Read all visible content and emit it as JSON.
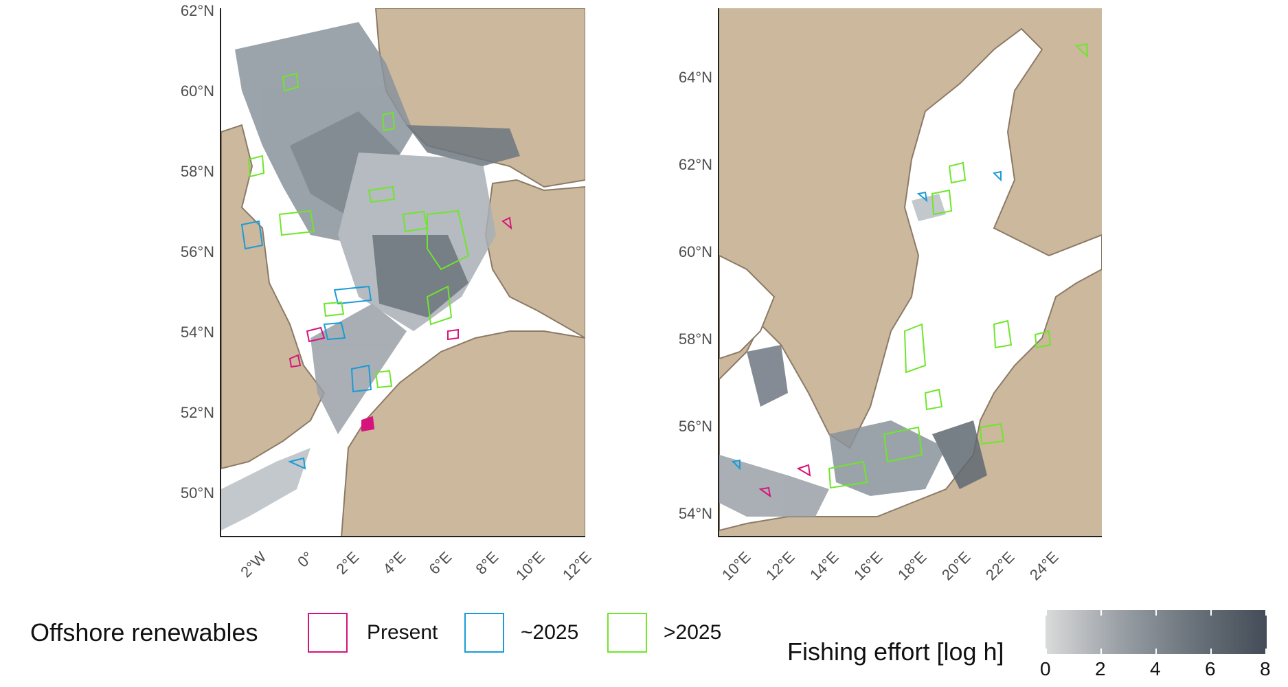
{
  "left_map": {
    "lat_labels": [
      "62°N",
      "60°N",
      "58°N",
      "56°N",
      "54°N",
      "52°N",
      "50°N"
    ],
    "lon_labels": [
      "2°W",
      "0°",
      "2°E",
      "4°E",
      "6°E",
      "8°E",
      "10°E",
      "12°E"
    ]
  },
  "right_map": {
    "lat_labels": [
      "64°N",
      "62°N",
      "60°N",
      "58°N",
      "56°N",
      "54°N"
    ],
    "lon_labels": [
      "10°E",
      "12°E",
      "14°E",
      "16°E",
      "18°E",
      "20°E",
      "22°E",
      "24°E"
    ]
  },
  "legend": {
    "title": "Offshore renewables",
    "items": [
      {
        "label": "Present",
        "color": "#d6147b"
      },
      {
        "label": "~2025",
        "color": "#1a9bd7"
      },
      {
        "label": ">2025",
        "color": "#6ee62a"
      }
    ]
  },
  "colorbar": {
    "title": "Fishing effort [log h]",
    "ticks": [
      "0",
      "2",
      "4",
      "6",
      "8"
    ],
    "range": [
      0,
      8
    ]
  },
  "colors": {
    "land": "#cbb89d",
    "sea": "#ffffff",
    "coast": "#8c7a66",
    "effort_dark": "#444c57"
  }
}
